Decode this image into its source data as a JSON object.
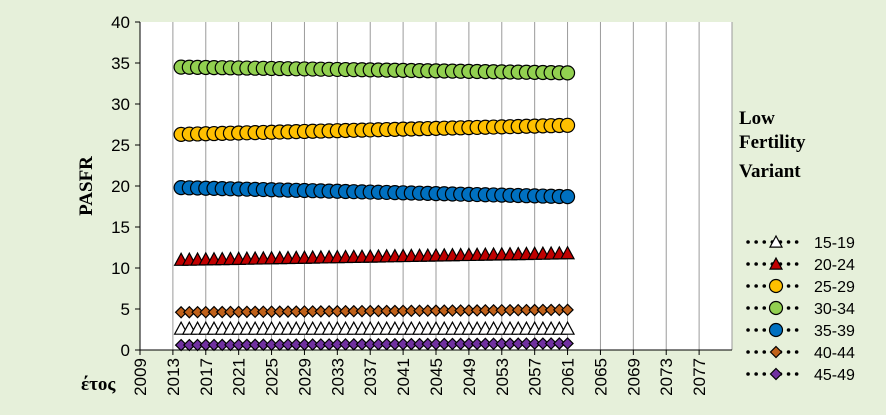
{
  "chart_data": {
    "type": "scatter",
    "title_lines": [
      "Low",
      "Fertility",
      "Variant"
    ],
    "ylabel": "PASFR",
    "xlabel": "έτος",
    "xlim": [
      2009,
      2081
    ],
    "ylim": [
      0,
      40
    ],
    "x_ticks": [
      2009,
      2013,
      2017,
      2021,
      2025,
      2029,
      2033,
      2037,
      2041,
      2045,
      2049,
      2053,
      2057,
      2061,
      2065,
      2069,
      2073,
      2077
    ],
    "y_ticks": [
      0,
      5,
      10,
      15,
      20,
      25,
      30,
      35,
      40
    ],
    "grid": "vertical",
    "legend_position": "right",
    "x_start": 2014,
    "x_end": 2061,
    "series": [
      {
        "name": "15-19",
        "start": 2.6,
        "end": 2.6,
        "marker": "triangle",
        "fill": "#ffffff",
        "stroke": "#000000"
      },
      {
        "name": "20-24",
        "start": 11.0,
        "end": 11.8,
        "marker": "triangle",
        "fill": "#c00000",
        "stroke": "#000000"
      },
      {
        "name": "25-29",
        "start": 26.3,
        "end": 27.4,
        "marker": "circle",
        "fill": "#ffc000",
        "stroke": "#000000"
      },
      {
        "name": "30-34",
        "start": 34.5,
        "end": 33.8,
        "marker": "circle",
        "fill": "#92d050",
        "stroke": "#000000"
      },
      {
        "name": "35-39",
        "start": 19.8,
        "end": 18.7,
        "marker": "circle",
        "fill": "#0070c0",
        "stroke": "#000000"
      },
      {
        "name": "40-44",
        "start": 4.6,
        "end": 4.9,
        "marker": "diamond",
        "fill": "#c0611a",
        "stroke": "#000000"
      },
      {
        "name": "45-49",
        "start": 0.6,
        "end": 0.8,
        "marker": "diamond",
        "fill": "#7030a0",
        "stroke": "#000000"
      }
    ]
  }
}
